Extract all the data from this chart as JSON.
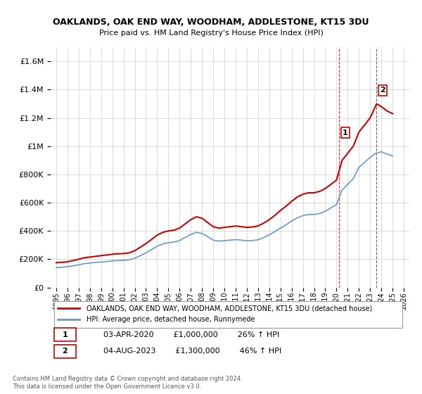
{
  "title": "OAKLANDS, OAK END WAY, WOODHAM, ADDLESTONE, KT15 3DU",
  "subtitle": "Price paid vs. HM Land Registry's House Price Index (HPI)",
  "ylabel_ticks": [
    "£0",
    "£200K",
    "£400K",
    "£600K",
    "£800K",
    "£1M",
    "£1.2M",
    "£1.4M",
    "£1.6M"
  ],
  "ytick_values": [
    0,
    200000,
    400000,
    600000,
    800000,
    1000000,
    1200000,
    1400000,
    1600000
  ],
  "ylim": [
    0,
    1700000
  ],
  "x_start_year": 1995,
  "x_end_year": 2026,
  "xtick_years": [
    1995,
    1996,
    1997,
    1998,
    1999,
    2000,
    2001,
    2002,
    2003,
    2004,
    2005,
    2006,
    2007,
    2008,
    2009,
    2010,
    2011,
    2012,
    2013,
    2014,
    2015,
    2016,
    2017,
    2018,
    2019,
    2020,
    2021,
    2022,
    2023,
    2024,
    2025,
    2026
  ],
  "sale1_x": 2020.25,
  "sale1_y": 1000000,
  "sale1_label": "1",
  "sale2_x": 2023.58,
  "sale2_y": 1300000,
  "sale2_label": "2",
  "vline1_x": 2020.25,
  "vline2_x": 2023.58,
  "red_line_color": "#cc0000",
  "blue_line_color": "#6699cc",
  "vline_color": "#cc0000",
  "grid_color": "#cccccc",
  "background_color": "#ffffff",
  "legend_label_red": "OAKLANDS, OAK END WAY, WOODHAM, ADDLESTONE, KT15 3DU (detached house)",
  "legend_label_blue": "HPI: Average price, detached house, Runnymede",
  "annot1_date": "03-APR-2020",
  "annot1_price": "£1,000,000",
  "annot1_hpi": "26% ↑ HPI",
  "annot2_date": "04-AUG-2023",
  "annot2_price": "£1,300,000",
  "annot2_hpi": "46% ↑ HPI",
  "copyright_text": "Contains HM Land Registry data © Crown copyright and database right 2024.\nThis data is licensed under the Open Government Licence v3.0.",
  "hpi_red_x": [
    1995.0,
    1995.5,
    1996.0,
    1996.5,
    1997.0,
    1997.5,
    1998.0,
    1998.5,
    1999.0,
    1999.5,
    2000.0,
    2000.5,
    2001.0,
    2001.5,
    2002.0,
    2002.5,
    2003.0,
    2003.5,
    2004.0,
    2004.5,
    2005.0,
    2005.5,
    2006.0,
    2006.5,
    2007.0,
    2007.5,
    2008.0,
    2008.5,
    2009.0,
    2009.5,
    2010.0,
    2010.5,
    2011.0,
    2011.5,
    2012.0,
    2012.5,
    2013.0,
    2013.5,
    2014.0,
    2014.5,
    2015.0,
    2015.5,
    2016.0,
    2016.5,
    2017.0,
    2017.5,
    2018.0,
    2018.5,
    2019.0,
    2019.5,
    2020.0,
    2020.5,
    2021.0,
    2021.5,
    2022.0,
    2022.5,
    2023.0,
    2023.58,
    2024.0,
    2024.5,
    2025.0
  ],
  "hpi_red_y": [
    175000,
    178000,
    182000,
    190000,
    200000,
    210000,
    215000,
    220000,
    225000,
    230000,
    235000,
    238000,
    240000,
    245000,
    260000,
    285000,
    310000,
    340000,
    370000,
    390000,
    400000,
    405000,
    420000,
    450000,
    480000,
    500000,
    490000,
    460000,
    430000,
    420000,
    425000,
    430000,
    435000,
    430000,
    425000,
    428000,
    435000,
    455000,
    480000,
    510000,
    545000,
    575000,
    610000,
    640000,
    660000,
    670000,
    670000,
    680000,
    700000,
    730000,
    760000,
    900000,
    950000,
    1000000,
    1100000,
    1150000,
    1200000,
    1300000,
    1280000,
    1250000,
    1230000
  ],
  "hpi_blue_x": [
    1995.0,
    1995.5,
    1996.0,
    1996.5,
    1997.0,
    1997.5,
    1998.0,
    1998.5,
    1999.0,
    1999.5,
    2000.0,
    2000.5,
    2001.0,
    2001.5,
    2002.0,
    2002.5,
    2003.0,
    2003.5,
    2004.0,
    2004.5,
    2005.0,
    2005.5,
    2006.0,
    2006.5,
    2007.0,
    2007.5,
    2008.0,
    2008.5,
    2009.0,
    2009.5,
    2010.0,
    2010.5,
    2011.0,
    2011.5,
    2012.0,
    2012.5,
    2013.0,
    2013.5,
    2014.0,
    2014.5,
    2015.0,
    2015.5,
    2016.0,
    2016.5,
    2017.0,
    2017.5,
    2018.0,
    2018.5,
    2019.0,
    2019.5,
    2020.0,
    2020.5,
    2021.0,
    2021.5,
    2022.0,
    2022.5,
    2023.0,
    2023.5,
    2024.0,
    2024.5,
    2025.0
  ],
  "hpi_blue_y": [
    140000,
    143000,
    147000,
    153000,
    160000,
    168000,
    173000,
    177000,
    180000,
    184000,
    188000,
    191000,
    192000,
    195000,
    207000,
    225000,
    245000,
    268000,
    292000,
    308000,
    317000,
    321000,
    332000,
    354000,
    375000,
    390000,
    383000,
    360000,
    335000,
    328000,
    331000,
    335000,
    338000,
    335000,
    330000,
    332000,
    337000,
    353000,
    372000,
    395000,
    420000,
    443000,
    470000,
    493000,
    508000,
    516000,
    517000,
    523000,
    539000,
    563000,
    586000,
    690000,
    730000,
    770000,
    850000,
    885000,
    920000,
    950000,
    960000,
    945000,
    930000
  ]
}
